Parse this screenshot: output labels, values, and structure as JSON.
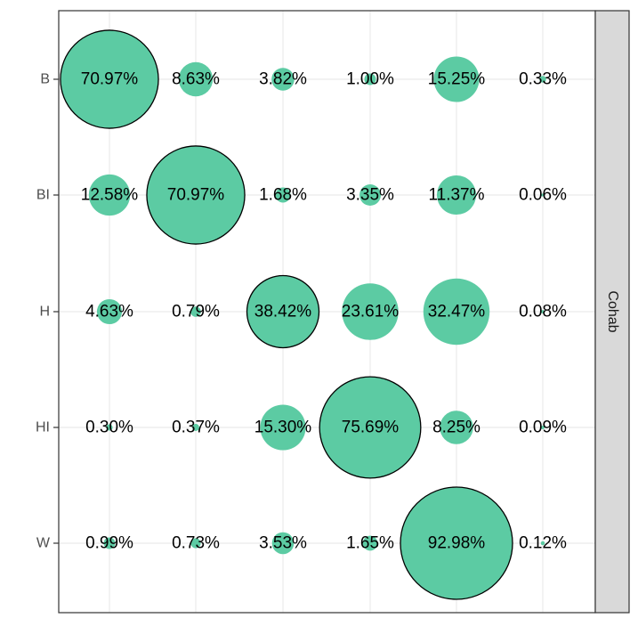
{
  "chart_data": {
    "type": "scatter",
    "subtype": "bubble-matrix",
    "title": "",
    "xlabel": "",
    "ylabel": "",
    "facet_label": "Cohab",
    "rows": [
      "B",
      "BI",
      "H",
      "HI",
      "W"
    ],
    "columns": 6,
    "cells": [
      [
        {
          "value": 70.97,
          "label": "70.97%",
          "highlight": true
        },
        {
          "value": 8.63,
          "label": "8.63%",
          "highlight": false
        },
        {
          "value": 3.82,
          "label": "3.82%",
          "highlight": false
        },
        {
          "value": 1.0,
          "label": "1.00%",
          "highlight": false
        },
        {
          "value": 15.25,
          "label": "15.25%",
          "highlight": false
        },
        {
          "value": 0.33,
          "label": "0.33%",
          "highlight": false
        }
      ],
      [
        {
          "value": 12.58,
          "label": "12.58%",
          "highlight": false
        },
        {
          "value": 70.97,
          "label": "70.97%",
          "highlight": true
        },
        {
          "value": 1.68,
          "label": "1.68%",
          "highlight": false
        },
        {
          "value": 3.35,
          "label": "3.35%",
          "highlight": false
        },
        {
          "value": 11.37,
          "label": "11.37%",
          "highlight": false
        },
        {
          "value": 0.06,
          "label": "0.06%",
          "highlight": false
        }
      ],
      [
        {
          "value": 4.63,
          "label": "4.63%",
          "highlight": false
        },
        {
          "value": 0.79,
          "label": "0.79%",
          "highlight": false
        },
        {
          "value": 38.42,
          "label": "38.42%",
          "highlight": true
        },
        {
          "value": 23.61,
          "label": "23.61%",
          "highlight": false
        },
        {
          "value": 32.47,
          "label": "32.47%",
          "highlight": false
        },
        {
          "value": 0.08,
          "label": "0.08%",
          "highlight": false
        }
      ],
      [
        {
          "value": 0.3,
          "label": "0.30%",
          "highlight": false
        },
        {
          "value": 0.37,
          "label": "0.37%",
          "highlight": false
        },
        {
          "value": 15.3,
          "label": "15.30%",
          "highlight": false
        },
        {
          "value": 75.69,
          "label": "75.69%",
          "highlight": true
        },
        {
          "value": 8.25,
          "label": "8.25%",
          "highlight": false
        },
        {
          "value": 0.09,
          "label": "0.09%",
          "highlight": false
        }
      ],
      [
        {
          "value": 0.99,
          "label": "0.99%",
          "highlight": false
        },
        {
          "value": 0.73,
          "label": "0.73%",
          "highlight": false
        },
        {
          "value": 3.53,
          "label": "3.53%",
          "highlight": false
        },
        {
          "value": 1.65,
          "label": "1.65%",
          "highlight": false
        },
        {
          "value": 92.98,
          "label": "92.98%",
          "highlight": true
        },
        {
          "value": 0.12,
          "label": "0.12%",
          "highlight": false
        }
      ]
    ],
    "size_max_value": 92.98,
    "grid": true,
    "legend": "none",
    "colors": {
      "bubble_fill": "#5ccba3",
      "highlight_stroke": "#000000",
      "grid": "#ebebeb",
      "panel_border": "#333333",
      "strip_fill": "#d9d9d9"
    }
  }
}
